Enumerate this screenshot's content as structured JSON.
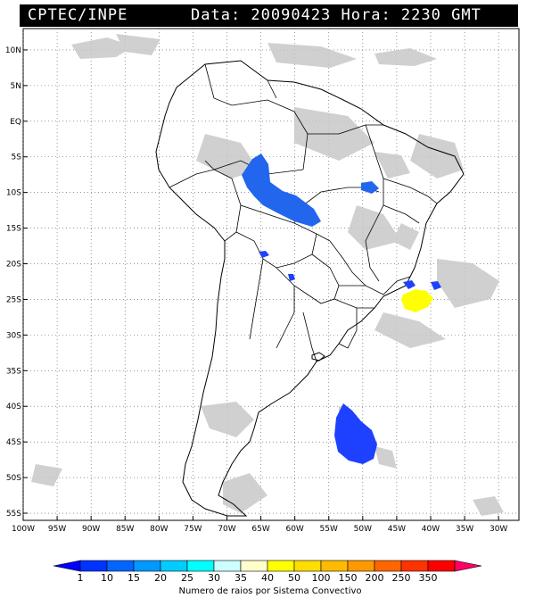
{
  "header": {
    "source": "CPTEC/INPE",
    "datetime": "Data: 20090423 Hora: 2230 GMT"
  },
  "map": {
    "lat_ticks": [
      "10N",
      "5N",
      "EQ",
      "5S",
      "10S",
      "15S",
      "20S",
      "25S",
      "30S",
      "35S",
      "40S",
      "45S",
      "50S",
      "55S"
    ],
    "lon_ticks": [
      "100W",
      "95W",
      "90W",
      "85W",
      "80W",
      "75W",
      "70W",
      "65W",
      "60W",
      "55W",
      "50W",
      "45W",
      "40W",
      "35W",
      "30W"
    ],
    "lat_values": [
      10,
      5,
      0,
      -5,
      -10,
      -15,
      -20,
      -25,
      -30,
      -35,
      -40,
      -45,
      -50,
      -55
    ],
    "lon_values": [
      -100,
      -95,
      -90,
      -85,
      -80,
      -75,
      -70,
      -65,
      -60,
      -55,
      -50,
      -45,
      -40,
      -35,
      -30
    ],
    "extent": {
      "lon": [
        -100,
        -27
      ],
      "lat": [
        -56,
        13
      ]
    },
    "grid": "dotted"
  },
  "colorbar": {
    "labels": [
      "1",
      "10",
      "15",
      "20",
      "25",
      "30",
      "35",
      "40",
      "50",
      "100",
      "150",
      "200",
      "250",
      "350"
    ],
    "colors": [
      "#0000ff",
      "#0033ff",
      "#0066ff",
      "#0099ff",
      "#00ccff",
      "#00ffff",
      "#ccffff",
      "#ffffcc",
      "#ffff00",
      "#ffdd00",
      "#ffbb00",
      "#ff9900",
      "#ff6600",
      "#ff3300",
      "#ff0000",
      "#ff0066"
    ],
    "title": "Numero de raios por Sistema Convectivo"
  },
  "features": {
    "cloud_color": "#c8c8c8",
    "storm_colors": {
      "low": "#1e40ff",
      "mid": "#2266ee",
      "high": "#ffff00"
    }
  }
}
